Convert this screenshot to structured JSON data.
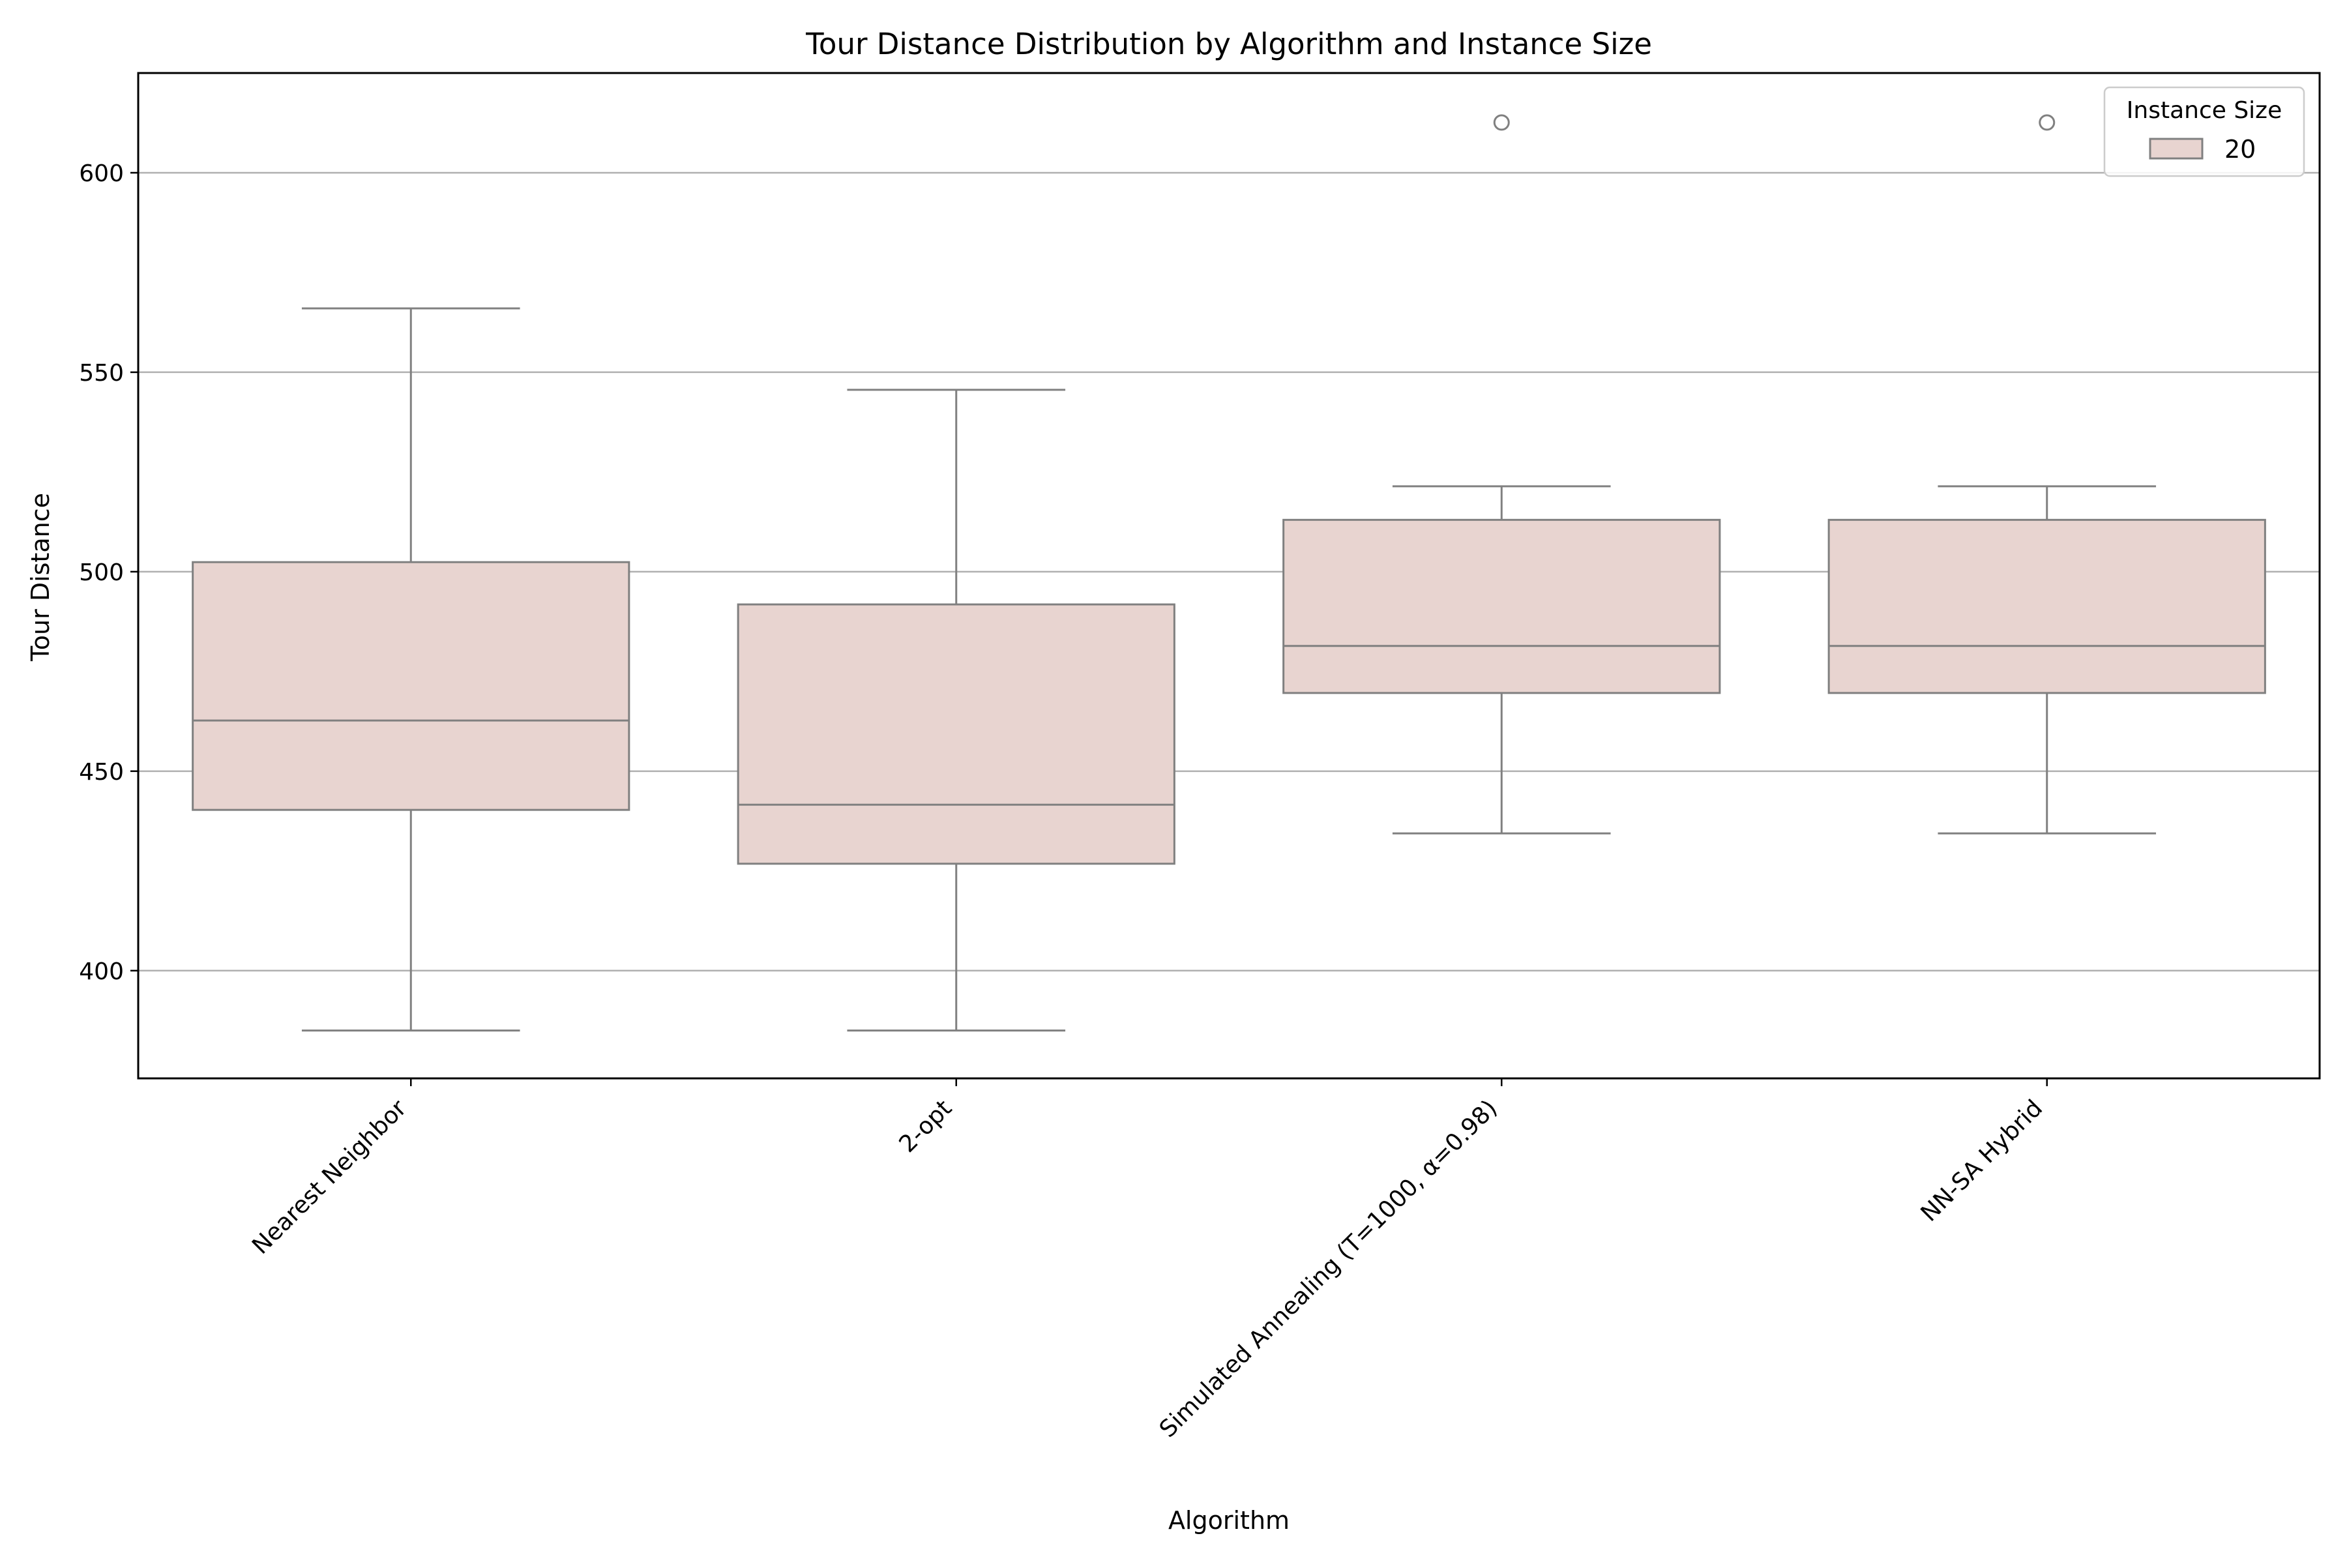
{
  "chart_data": {
    "type": "box",
    "title": "Tour Distance Distribution by Algorithm and Instance Size",
    "xlabel": "Algorithm",
    "ylabel": "Tour Distance",
    "ylim": [
      373,
      625
    ],
    "yticks": [
      400,
      450,
      500,
      550,
      600
    ],
    "grid": "horizontal",
    "legend": {
      "title": "Instance Size",
      "entries": [
        "20"
      ],
      "position": "top-right"
    },
    "colors": {
      "box_fill": "#e8d4d0",
      "box_edge": "#808080",
      "grid": "#b0b0b0",
      "axis": "#000000"
    },
    "categories": [
      "Nearest Neighbor",
      "2-opt",
      "Simulated Annealing (T=1000, α=0.98)",
      "NN-SA Hybrid"
    ],
    "series": [
      {
        "name": "20",
        "boxes": [
          {
            "whislo": 385,
            "q1": 440.3,
            "med": 462.7,
            "q3": 502.4,
            "whishi": 566,
            "fliers": []
          },
          {
            "whislo": 385,
            "q1": 426.8,
            "med": 441.6,
            "q3": 491.8,
            "whishi": 545.6,
            "fliers": []
          },
          {
            "whislo": 434.4,
            "q1": 469.6,
            "med": 481.4,
            "q3": 513,
            "whishi": 521.4,
            "fliers": [
              612.6
            ]
          },
          {
            "whislo": 434.4,
            "q1": 469.6,
            "med": 481.4,
            "q3": 513,
            "whishi": 521.4,
            "fliers": [
              612.6
            ]
          }
        ]
      }
    ]
  }
}
